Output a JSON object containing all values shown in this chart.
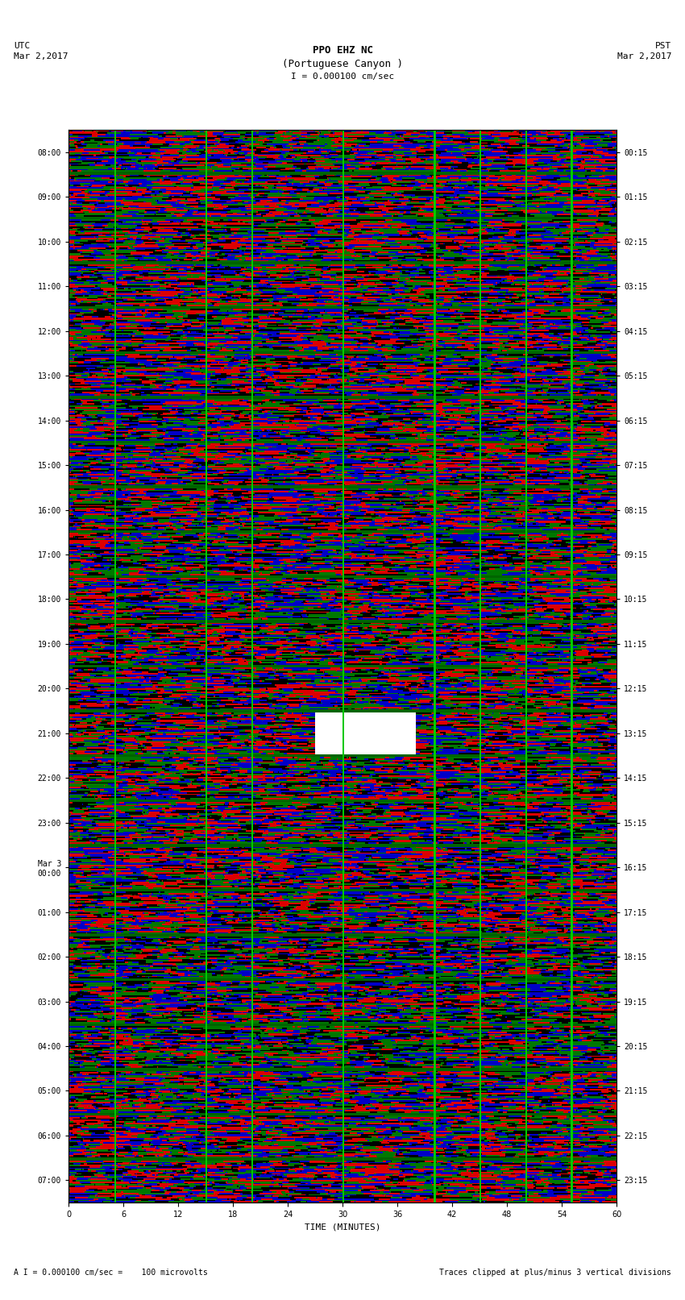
{
  "title_line1": "PPO EHZ NC",
  "title_line2": "(Portuguese Canyon )",
  "scale_text": "I = 0.000100 cm/sec",
  "utc_label": "UTC",
  "utc_date": "Mar 2,2017",
  "pst_label": "PST",
  "pst_date": "Mar 2,2017",
  "footer_left": "A I = 0.000100 cm/sec =    100 microvolts",
  "footer_right": "Traces clipped at plus/minus 3 vertical divisions",
  "xlabel": "TIME (MINUTES)",
  "left_times": [
    "08:00",
    "09:00",
    "10:00",
    "11:00",
    "12:00",
    "13:00",
    "14:00",
    "15:00",
    "16:00",
    "17:00",
    "18:00",
    "19:00",
    "20:00",
    "21:00",
    "22:00",
    "23:00",
    "Mar 3\n00:00",
    "01:00",
    "02:00",
    "03:00",
    "04:00",
    "05:00",
    "06:00",
    "07:00"
  ],
  "right_times": [
    "00:15",
    "01:15",
    "02:15",
    "03:15",
    "04:15",
    "05:15",
    "06:15",
    "07:15",
    "08:15",
    "09:15",
    "10:15",
    "11:15",
    "12:15",
    "13:15",
    "14:15",
    "15:15",
    "16:15",
    "17:15",
    "18:15",
    "19:15",
    "20:15",
    "21:15",
    "22:15",
    "23:15"
  ],
  "bg_color": "#ffffff",
  "plot_bg": "#000000",
  "n_rows": 24,
  "n_cols": 600,
  "colors": {
    "red": "#ff0000",
    "green": "#008000",
    "blue": "#0000ff",
    "black": "#000000",
    "white": "#ffffff",
    "dark_green": "#006400"
  },
  "seed": 42
}
